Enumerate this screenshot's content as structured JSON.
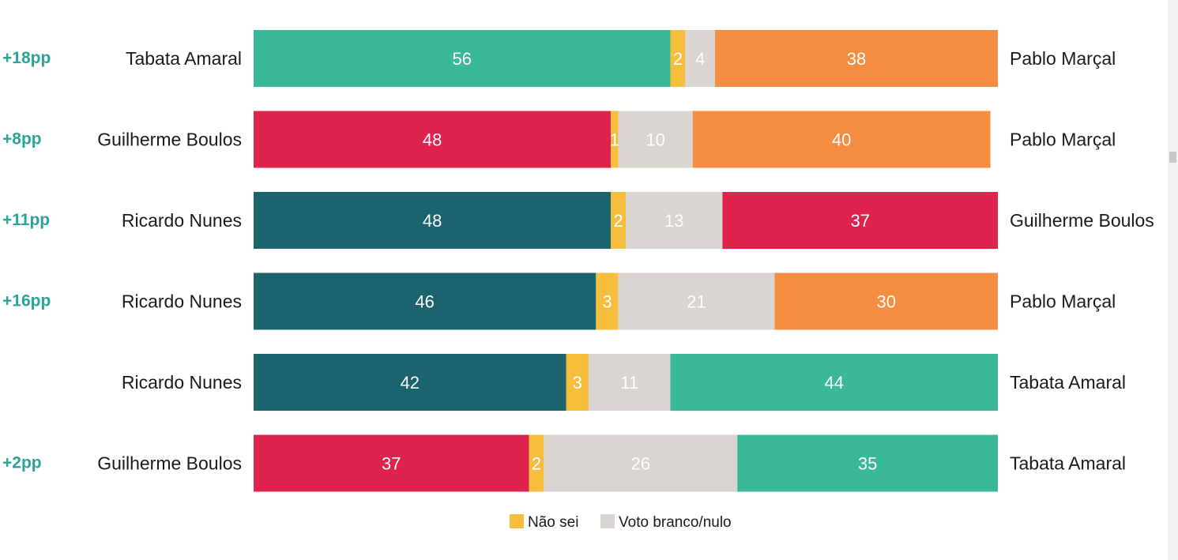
{
  "colors": {
    "Tabata Amaral": "#3bb79a",
    "Pablo Marçal": "#f58d41",
    "Guilherme Boulos": "#e0234d",
    "Ricardo Nunes": "#1b636d",
    "nao_sei": "#f7bd3d",
    "branco_nulo": "#d9d5d1",
    "margin_text": "#2aa39a"
  },
  "legend": {
    "nao_sei_label": "Não sei",
    "branco_nulo_label": "Voto branco/nulo"
  },
  "chart_data": {
    "type": "bar",
    "orientation": "horizontal",
    "stacked": true,
    "segments": [
      "left_candidate",
      "Não sei",
      "Voto branco/nulo",
      "right_candidate"
    ],
    "xlim": [
      0,
      100
    ],
    "rows": [
      {
        "margin": "+18pp",
        "left": "Tabata Amaral",
        "right": "Pablo Marçal",
        "values": [
          56,
          2,
          4,
          38
        ]
      },
      {
        "margin": "+8pp",
        "left": "Guilherme Boulos",
        "right": "Pablo Marçal",
        "values": [
          48,
          1,
          10,
          40
        ]
      },
      {
        "margin": "+11pp",
        "left": "Ricardo Nunes",
        "right": "Guilherme Boulos",
        "values": [
          48,
          2,
          13,
          37
        ]
      },
      {
        "margin": "+16pp",
        "left": "Ricardo Nunes",
        "right": "Pablo Marçal",
        "values": [
          46,
          3,
          21,
          30
        ]
      },
      {
        "margin": "",
        "left": "Ricardo Nunes",
        "right": "Tabata Amaral",
        "values": [
          42,
          3,
          11,
          44
        ]
      },
      {
        "margin": "+2pp",
        "left": "Guilherme Boulos",
        "right": "Tabata Amaral",
        "values": [
          37,
          2,
          26,
          35
        ]
      }
    ]
  }
}
